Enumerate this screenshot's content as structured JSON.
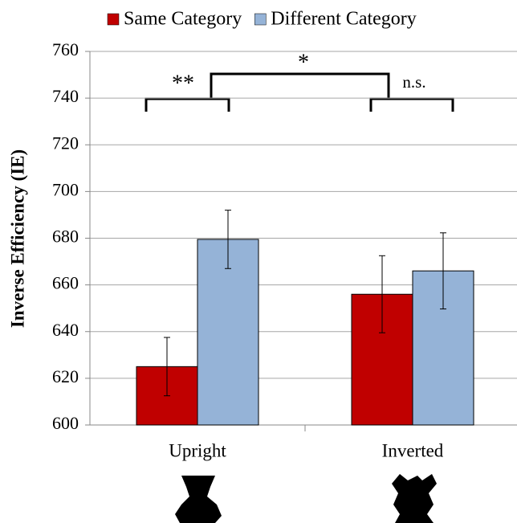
{
  "chart_data": {
    "type": "bar",
    "y_label": "Inverse Efficiency (IE)",
    "categories": [
      "Upright",
      "Inverted"
    ],
    "series": [
      {
        "name": "Same Category",
        "color": "#c00000",
        "values": [
          625,
          656
        ],
        "errors": [
          12.5,
          16.5
        ]
      },
      {
        "name": "Different Category",
        "color": "#95b3d7",
        "values": [
          679.5,
          666
        ],
        "errors": [
          12.5,
          16.3
        ]
      }
    ],
    "ylim": [
      600,
      760
    ],
    "yticks": [
      600,
      620,
      640,
      660,
      680,
      700,
      720,
      740,
      760
    ],
    "grid": true,
    "annotations": [
      "**",
      "*",
      "n.s."
    ]
  }
}
